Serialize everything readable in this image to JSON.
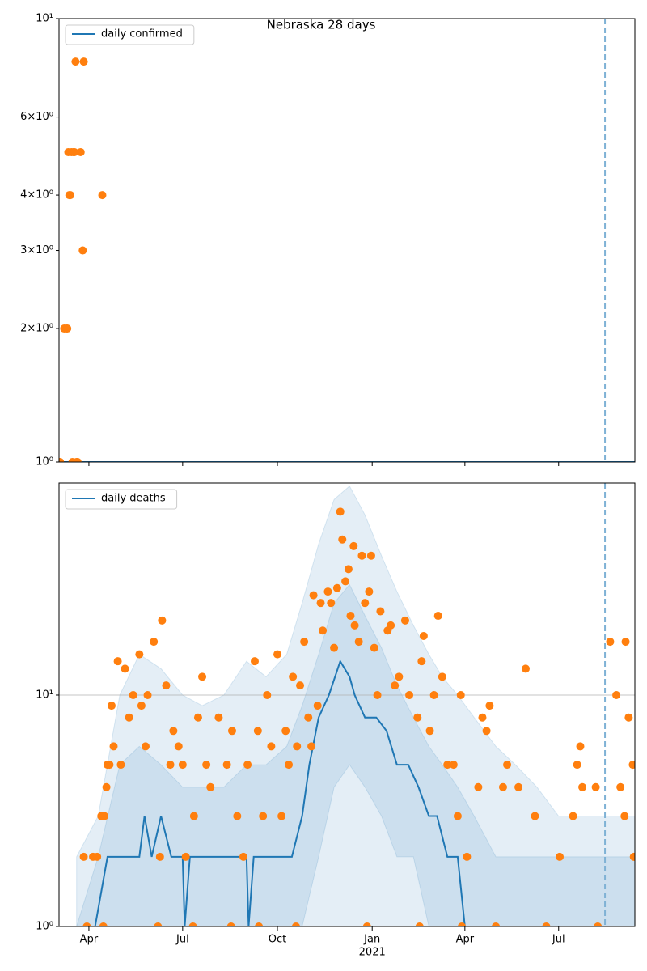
{
  "chart_data": [
    {
      "type": "line",
      "title": "Nebraska 28 days",
      "log_y": true,
      "legend": "upper left",
      "xlim": [
        "2020-03-03",
        "2021-09-13"
      ],
      "ylim": [
        1,
        10
      ],
      "yticks": [
        {
          "value": 1,
          "label": "10⁰"
        },
        {
          "value": 2,
          "label": "2×10⁰"
        },
        {
          "value": 3,
          "label": "3×10⁰"
        },
        {
          "value": 4,
          "label": "4×10⁰"
        },
        {
          "value": 6,
          "label": "6×10⁰"
        },
        {
          "value": 10,
          "label": "10¹"
        }
      ],
      "grid": true,
      "vline": {
        "x": "2021-08-15",
        "color": "#7fb2d5"
      },
      "series": [
        {
          "name": "daily confirmed",
          "color": "#1f77b4",
          "x": [
            "2020-03-03",
            "2021-09-13"
          ],
          "values": [
            1,
            1
          ]
        }
      ],
      "points": {
        "color": "#ff7f0e",
        "x": [
          "2020-03-04",
          "2020-03-08",
          "2020-03-10",
          "2020-03-11",
          "2020-03-12",
          "2020-03-13",
          "2020-03-14",
          "2020-03-15",
          "2020-03-16",
          "2020-03-17",
          "2020-03-18",
          "2020-03-19",
          "2020-03-20",
          "2020-03-21",
          "2020-03-24",
          "2020-03-26",
          "2020-03-27",
          "2020-04-14"
        ],
        "values": [
          1,
          2,
          2,
          2,
          5,
          4,
          4,
          5,
          1,
          5,
          5,
          8,
          1,
          1,
          5,
          3,
          8,
          4
        ]
      }
    },
    {
      "type": "line",
      "log_y": true,
      "legend": "upper left",
      "xlim": [
        "2020-03-03",
        "2021-09-13"
      ],
      "ylim": [
        1,
        82.4
      ],
      "yticks": [
        {
          "value": 1,
          "label": "10⁰"
        },
        {
          "value": 10,
          "label": "10¹"
        }
      ],
      "xticks": [
        {
          "value": "2020-04-01",
          "label": "Apr"
        },
        {
          "value": "2020-07-01",
          "label": "Jul"
        },
        {
          "value": "2020-10-01",
          "label": "Oct"
        },
        {
          "value": "2021-01-01",
          "label": "Jan"
        },
        {
          "value": "2021-04-01",
          "label": "Apr"
        },
        {
          "value": "2021-07-01",
          "label": "Jul"
        }
      ],
      "x_secondary_labels": [
        {
          "value": "2021-01-01",
          "label": "2021"
        }
      ],
      "grid": true,
      "vline": {
        "x": "2021-08-15",
        "color": "#7fb2d5"
      },
      "series": [
        {
          "name": "daily deaths",
          "color": "#1f77b4",
          "x": [
            "2020-04-07",
            "2020-04-19",
            "2020-05-20",
            "2020-05-25",
            "2020-06-01",
            "2020-06-10",
            "2020-06-20",
            "2020-07-01",
            "2020-07-03",
            "2020-07-08",
            "2020-09-01",
            "2020-09-03",
            "2020-09-08",
            "2020-10-15",
            "2020-10-25",
            "2020-11-01",
            "2020-11-10",
            "2020-11-20",
            "2020-12-01",
            "2020-12-10",
            "2020-12-15",
            "2020-12-25",
            "2021-01-05",
            "2021-01-15",
            "2021-01-25",
            "2021-02-05",
            "2021-02-15",
            "2021-02-25",
            "2021-03-05",
            "2021-03-15",
            "2021-03-25",
            "2021-04-01"
          ],
          "values": [
            1,
            2,
            2,
            3,
            2,
            3,
            2,
            2,
            1,
            2,
            2,
            1,
            2,
            2,
            3,
            5,
            8,
            10,
            14,
            12,
            10,
            8,
            8,
            7,
            5,
            5,
            4,
            3,
            3,
            2,
            2,
            1
          ]
        }
      ],
      "bands": {
        "color": "#1f77b4",
        "x": [
          "2020-03-20",
          "2020-04-10",
          "2020-05-01",
          "2020-05-20",
          "2020-06-10",
          "2020-07-01",
          "2020-07-20",
          "2020-08-10",
          "2020-09-01",
          "2020-09-20",
          "2020-10-10",
          "2020-10-25",
          "2020-11-10",
          "2020-11-25",
          "2020-12-10",
          "2020-12-25",
          "2021-01-10",
          "2021-01-25",
          "2021-02-10",
          "2021-02-25",
          "2021-03-10",
          "2021-03-25",
          "2021-04-10",
          "2021-05-01",
          "2021-05-20",
          "2021-06-10",
          "2021-07-01",
          "2021-07-20",
          "2021-08-10",
          "2021-09-13"
        ],
        "ranges": [
          {
            "upper": [
              2,
              3,
              10,
              15,
              13,
              10,
              9,
              10,
              14,
              12,
              15,
              25,
              45,
              70,
              80,
              60,
              40,
              28,
              20,
              15,
              12,
              10,
              8,
              6,
              5,
              4,
              3,
              3,
              3,
              3
            ],
            "lower": [
              1,
              1,
              1,
              1,
              1,
              1,
              1,
              1,
              1,
              1,
              1,
              1,
              1,
              1,
              1,
              1,
              1,
              1,
              1,
              1,
              1,
              1,
              1,
              1,
              1,
              1,
              1,
              1,
              1,
              1
            ]
          },
          {
            "upper": [
              1,
              2,
              5,
              6,
              5,
              4,
              4,
              4,
              5,
              5,
              6,
              9,
              15,
              25,
              30,
              22,
              16,
              11,
              8,
              6,
              5,
              4,
              3,
              2,
              2,
              2,
              2,
              2,
              2,
              2
            ],
            "lower": [
              1,
              1,
              1,
              1,
              1,
              1,
              1,
              1,
              1,
              1,
              1,
              1,
              2,
              4,
              5,
              4,
              3,
              2,
              2,
              1,
              1,
              1,
              1,
              1,
              1,
              1,
              1,
              1,
              1,
              1
            ]
          }
        ]
      },
      "points": {
        "color": "#ff7f0e",
        "x": [
          "2020-03-27",
          "2020-03-30",
          "2020-04-05",
          "2020-04-09",
          "2020-04-13",
          "2020-04-15",
          "2020-04-16",
          "2020-04-18",
          "2020-04-19",
          "2020-04-21",
          "2020-04-23",
          "2020-04-25",
          "2020-04-29",
          "2020-05-02",
          "2020-05-06",
          "2020-05-10",
          "2020-05-14",
          "2020-05-20",
          "2020-05-22",
          "2020-05-26",
          "2020-05-28",
          "2020-06-03",
          "2020-06-07",
          "2020-06-09",
          "2020-06-11",
          "2020-06-15",
          "2020-06-19",
          "2020-06-22",
          "2020-06-27",
          "2020-07-01",
          "2020-07-04",
          "2020-07-11",
          "2020-07-12",
          "2020-07-16",
          "2020-07-20",
          "2020-07-24",
          "2020-07-28",
          "2020-08-05",
          "2020-08-13",
          "2020-08-17",
          "2020-08-18",
          "2020-08-23",
          "2020-08-29",
          "2020-09-02",
          "2020-09-09",
          "2020-09-12",
          "2020-09-13",
          "2020-09-17",
          "2020-09-21",
          "2020-09-25",
          "2020-10-01",
          "2020-10-05",
          "2020-10-09",
          "2020-10-12",
          "2020-10-16",
          "2020-10-19",
          "2020-10-20",
          "2020-10-23",
          "2020-10-27",
          "2020-10-31",
          "2020-11-03",
          "2020-11-05",
          "2020-11-09",
          "2020-11-12",
          "2020-11-14",
          "2020-11-19",
          "2020-11-22",
          "2020-11-25",
          "2020-11-28",
          "2020-12-01",
          "2020-12-03",
          "2020-12-06",
          "2020-12-09",
          "2020-12-11",
          "2020-12-14",
          "2020-12-15",
          "2020-12-19",
          "2020-12-22",
          "2020-12-25",
          "2020-12-27",
          "2020-12-29",
          "2020-12-31",
          "2021-01-03",
          "2021-01-06",
          "2021-01-09",
          "2021-01-16",
          "2021-01-19",
          "2021-01-23",
          "2021-01-27",
          "2021-02-02",
          "2021-02-06",
          "2021-02-14",
          "2021-02-16",
          "2021-02-18",
          "2021-02-20",
          "2021-02-26",
          "2021-03-02",
          "2021-03-06",
          "2021-03-10",
          "2021-03-15",
          "2021-03-21",
          "2021-03-25",
          "2021-03-28",
          "2021-03-29",
          "2021-04-03",
          "2021-04-14",
          "2021-04-18",
          "2021-04-22",
          "2021-04-25",
          "2021-05-01",
          "2021-05-08",
          "2021-05-12",
          "2021-05-23",
          "2021-05-30",
          "2021-06-08",
          "2021-06-19",
          "2021-07-02",
          "2021-07-15",
          "2021-07-19",
          "2021-07-22",
          "2021-07-24",
          "2021-08-06",
          "2021-08-08",
          "2021-08-20",
          "2021-08-26",
          "2021-08-30",
          "2021-09-03",
          "2021-09-04",
          "2021-09-07",
          "2021-09-11",
          "2021-09-12"
        ],
        "values": [
          2,
          1,
          2,
          2,
          3,
          1,
          3,
          4,
          5,
          5,
          9,
          6,
          14,
          5,
          13,
          8,
          10,
          15,
          9,
          6,
          10,
          17,
          1,
          2,
          21,
          11,
          5,
          7,
          6,
          5,
          2,
          1,
          3,
          8,
          12,
          5,
          4,
          8,
          5,
          1,
          7,
          3,
          2,
          5,
          14,
          7,
          1,
          3,
          10,
          6,
          15,
          3,
          7,
          5,
          12,
          1,
          6,
          11,
          17,
          8,
          6,
          27,
          9,
          25,
          19,
          28,
          25,
          16,
          29,
          62,
          47,
          31,
          35,
          22,
          44,
          20,
          17,
          40,
          25,
          1,
          28,
          40,
          16,
          10,
          23,
          19,
          20,
          11,
          12,
          21,
          10,
          8,
          1,
          14,
          18,
          7,
          10,
          22,
          12,
          5,
          5,
          3,
          10,
          1,
          2,
          4,
          8,
          7,
          9,
          1,
          4,
          5,
          4,
          13,
          3,
          1,
          2,
          3,
          5,
          6,
          4,
          4,
          1,
          17,
          10,
          4,
          3,
          17,
          8,
          5,
          2
        ]
      }
    }
  ]
}
